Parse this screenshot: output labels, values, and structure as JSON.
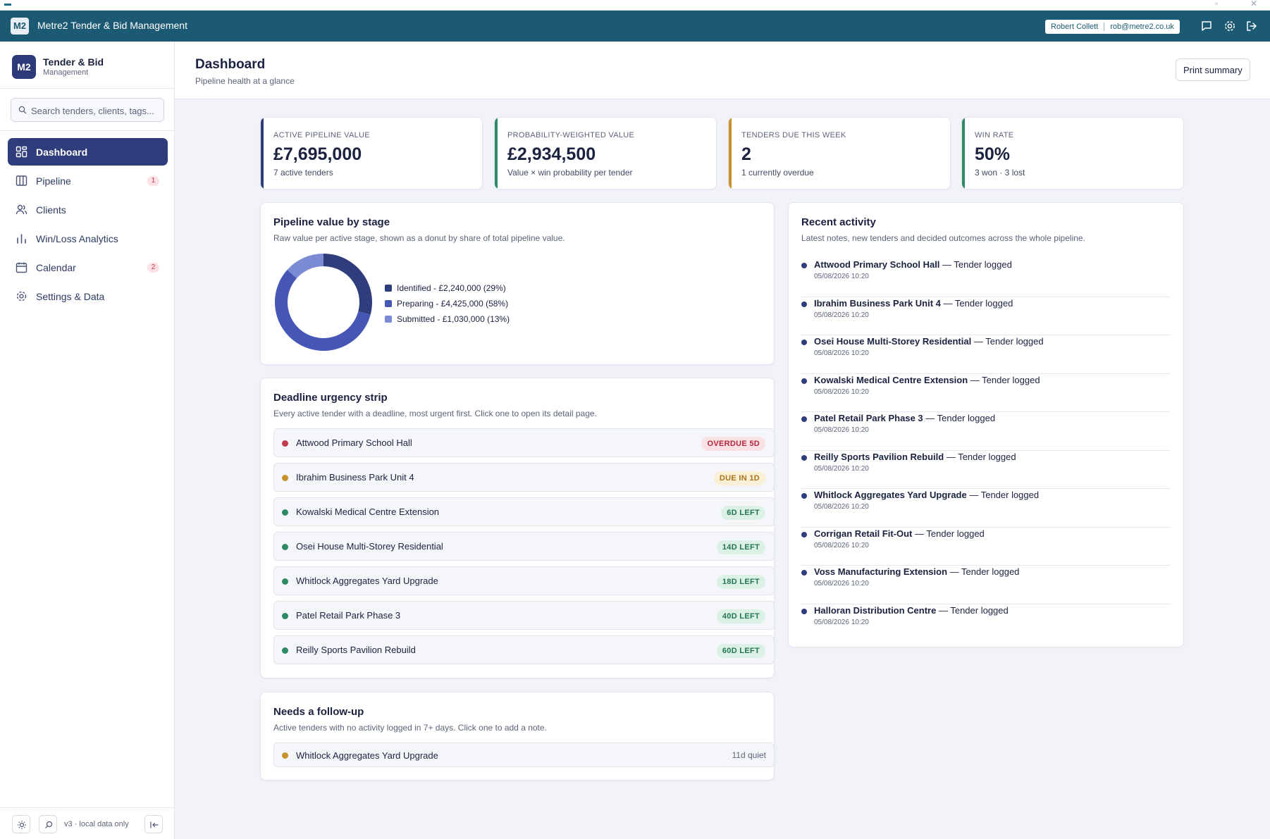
{
  "colors": {
    "accent": "#2f3d7c",
    "topbar": "#1c5a73",
    "kpi_bars": [
      "#2f3d7c",
      "#2e8a64",
      "#c7922b",
      "#2e8a64"
    ],
    "dot_overdue": "#c23b4d",
    "dot_soon": "#c7922b",
    "dot_ok": "#2e8a64"
  },
  "topbar": {
    "logo": "M2",
    "title": "Metre2 Tender & Bid Management",
    "user_name": "Robert Collett",
    "user_email": "rob@metre2.co.uk",
    "icons": [
      "chat-icon",
      "gear-icon",
      "logout-icon"
    ]
  },
  "sidebar": {
    "logo": "M2",
    "brand_name": "Tender & Bid",
    "brand_sub": "Management",
    "search_placeholder": "Search tenders, clients, tags...",
    "items": [
      {
        "label": "Dashboard",
        "icon": "grid-icon",
        "active": true,
        "badge": ""
      },
      {
        "label": "Pipeline",
        "icon": "columns-icon",
        "active": false,
        "badge": "1"
      },
      {
        "label": "Clients",
        "icon": "users-icon",
        "active": false,
        "badge": ""
      },
      {
        "label": "Win/Loss Analytics",
        "icon": "bar-chart-icon",
        "active": false,
        "badge": ""
      },
      {
        "label": "Calendar",
        "icon": "calendar-icon",
        "active": false,
        "badge": "2"
      },
      {
        "label": "Settings & Data",
        "icon": "gear-icon",
        "active": false,
        "badge": ""
      }
    ],
    "footer_version": "v3 · local data only"
  },
  "header": {
    "title": "Dashboard",
    "subtitle": "Pipeline health at a glance",
    "print_label": "Print summary"
  },
  "kpis": [
    {
      "label": "ACTIVE PIPELINE VALUE",
      "value": "£7,695,000",
      "note": "7 active tenders"
    },
    {
      "label": "PROBABILITY-WEIGHTED VALUE",
      "value": "£2,934,500",
      "note": "Value × win probability per tender"
    },
    {
      "label": "TENDERS DUE THIS WEEK",
      "value": "2",
      "note": "1 currently overdue"
    },
    {
      "label": "WIN RATE",
      "value": "50%",
      "note": "3 won · 3 lost"
    }
  ],
  "pipeline_by_stage": {
    "title": "Pipeline value by stage",
    "description": "Raw value per active stage, shown as a donut by share of total pipeline value."
  },
  "chart_data": {
    "type": "pie",
    "title": "Pipeline value by stage",
    "donut": true,
    "series": [
      {
        "name": "Identified",
        "value": 2240000,
        "share": 29,
        "label": "Identified - £2,240,000 (29%)",
        "color": "#2f3d7c"
      },
      {
        "name": "Preparing",
        "value": 4425000,
        "share": 58,
        "label": "Preparing - £4,425,000 (58%)",
        "color": "#4556b4"
      },
      {
        "name": "Submitted",
        "value": 1030000,
        "share": 13,
        "label": "Submitted - £1,030,000 (13%)",
        "color": "#7a8ad3"
      }
    ]
  },
  "urgency": {
    "title": "Deadline urgency strip",
    "description": "Every active tender with a deadline, most urgent first. Click one to open its detail page.",
    "rows": [
      {
        "name": "Attwood Primary School Hall",
        "pill": "OVERDUE 5D",
        "status": "overdue"
      },
      {
        "name": "Ibrahim Business Park Unit 4",
        "pill": "DUE IN 1D",
        "status": "soon"
      },
      {
        "name": "Kowalski Medical Centre Extension",
        "pill": "6D LEFT",
        "status": "ok"
      },
      {
        "name": "Osei House Multi-Storey Residential",
        "pill": "14D LEFT",
        "status": "ok"
      },
      {
        "name": "Whitlock Aggregates Yard Upgrade",
        "pill": "18D LEFT",
        "status": "ok"
      },
      {
        "name": "Patel Retail Park Phase 3",
        "pill": "40D LEFT",
        "status": "ok"
      },
      {
        "name": "Reilly Sports Pavilion Rebuild",
        "pill": "60D LEFT",
        "status": "ok"
      }
    ]
  },
  "followup": {
    "title": "Needs a follow-up",
    "description": "Active tenders with no activity logged in 7+ days. Click one to add a note.",
    "rows": [
      {
        "name": "Whitlock Aggregates Yard Upgrade",
        "quiet": "11d quiet"
      }
    ]
  },
  "activity": {
    "title": "Recent activity",
    "description": "Latest notes, new tenders and decided outcomes across the whole pipeline.",
    "items": [
      {
        "name": "Attwood Primary School Hall",
        "action": " — Tender logged",
        "date": "05/08/2026 10:20"
      },
      {
        "name": "Ibrahim Business Park Unit 4",
        "action": " — Tender logged",
        "date": "05/08/2026 10:20"
      },
      {
        "name": "Osei House Multi-Storey Residential",
        "action": " — Tender logged",
        "date": "05/08/2026 10:20"
      },
      {
        "name": "Kowalski Medical Centre Extension",
        "action": " — Tender logged",
        "date": "05/08/2026 10:20"
      },
      {
        "name": "Patel Retail Park Phase 3",
        "action": " — Tender logged",
        "date": "05/08/2026 10:20"
      },
      {
        "name": "Reilly Sports Pavilion Rebuild",
        "action": " — Tender logged",
        "date": "05/08/2026 10:20"
      },
      {
        "name": "Whitlock Aggregates Yard Upgrade",
        "action": " — Tender logged",
        "date": "05/08/2026 10:20"
      },
      {
        "name": "Corrigan Retail Fit-Out",
        "action": " — Tender logged",
        "date": "05/08/2026 10:20"
      },
      {
        "name": "Voss Manufacturing Extension",
        "action": " — Tender logged",
        "date": "05/08/2026 10:20"
      },
      {
        "name": "Halloran Distribution Centre",
        "action": " — Tender logged",
        "date": "05/08/2026 10:20"
      }
    ]
  }
}
